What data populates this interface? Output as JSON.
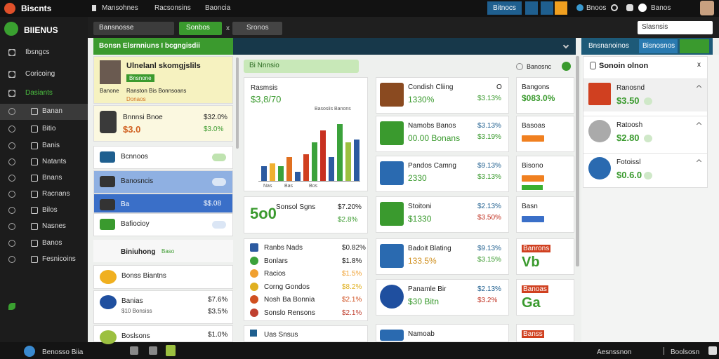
{
  "topbar": {
    "brand": "Biscnts",
    "nav": [
      "Mansohnes",
      "Racsonsins",
      "Baoncia"
    ],
    "button": "Bitnocs",
    "right": [
      "Bnoos",
      "Banos"
    ]
  },
  "sidebar": {
    "brand": "BIIENUS",
    "items": [
      "Ibsngcs",
      "Coricoing",
      "Dasiants",
      "Banan",
      "Bitio",
      "Banis",
      "Natants",
      "Bnans",
      "Racnans",
      "Bilos",
      "Nasnes",
      "Banos",
      "Fesnicoins"
    ],
    "footer": "Benosso Biia"
  },
  "toolbar": {
    "select": "Bansnosse",
    "button": "Sonbos",
    "close": "x",
    "field": "Sronos",
    "search": "Slasnsis"
  },
  "panel": {
    "title": "Bonsn Elsrnniuns I bcgngisdii",
    "right_title": "Bnsnanoinos",
    "right_tab": "Bisnosnos"
  },
  "profile": {
    "name": "Ulnelanl skomgjslils",
    "tag": "Bnsnone",
    "role": "Banone",
    "detail": "Ranston Bis Bonnsoans",
    "note": "Donaos"
  },
  "stat": {
    "label": "Bnnnsi Bnoe",
    "big": "$3.0",
    "value": "$32.0%",
    "value2": "$3.0%"
  },
  "left_list": [
    {
      "label": "Bcnnoos"
    },
    {
      "label": "Banosncis"
    },
    {
      "label": "Ba",
      "value": "$$.08"
    },
    {
      "label": "Bafiocioy"
    }
  ],
  "section": {
    "label": "Biniuhong",
    "tag": "Baso"
  },
  "left_cards": [
    {
      "label": "Bonss Biantns"
    },
    {
      "label": "Banias",
      "sub": "$10 Bonsiss",
      "v1": "$7.6%",
      "v2": "$3.5%"
    },
    {
      "label": "Boslsons",
      "v1": "$1.0%"
    }
  ],
  "filter": "Bi Nnnsio",
  "status": "Banosnc",
  "chart_card": {
    "title": "Rasmsis",
    "value": "$3,8/70",
    "caption": "Basosiis Banons",
    "labels": [
      "Nas",
      "Bas",
      "Bos"
    ],
    "bars": {
      "values": [
        25,
        30,
        25,
        40,
        15,
        45,
        65,
        85,
        40,
        95,
        65,
        70
      ],
      "colors": [
        "#2c5aa0",
        "#f0b030",
        "#3ba23b",
        "#e07020",
        "#2c5aa0",
        "#d04020",
        "#3ba23b",
        "#c83020",
        "#2c5aa0",
        "#3ba23b",
        "#9cc040",
        "#2c5aa0"
      ]
    }
  },
  "score_card": {
    "big": "5o0",
    "label": "Sonsol Sgns",
    "v1": "$7.20%",
    "v2": "$2.8%"
  },
  "legend": [
    {
      "label": "Ranbs Nads",
      "value": "$0.82%",
      "color": "#2c5aa0"
    },
    {
      "label": "Bonlars",
      "value": "$1.8%",
      "color": "#3ba23b"
    },
    {
      "label": "Racios",
      "value": "$1.5%",
      "color": "#f0a030"
    },
    {
      "label": "Corng Gondos",
      "value": "$8.2%",
      "color": "#e0b020"
    },
    {
      "label": "Nosh Ba Bonnia",
      "value": "$2.1%",
      "color": "#d05020"
    },
    {
      "label": "Sonslo Rensons",
      "value": "$2.1%",
      "color": "#c04030"
    }
  ],
  "bottom_card": "Uas Snsus",
  "tiles": [
    {
      "title": "Condish Cliing",
      "value": "1330%",
      "v1": "$3.13%",
      "o": "O"
    },
    {
      "title": "Namobs Banos",
      "value": "00.00 Bonans",
      "v1": "$3.13%",
      "v2": "$3.19%"
    },
    {
      "title": "Pandos Camng",
      "value": "2330",
      "v1": "$9.13%",
      "v2": "$3.13%"
    },
    {
      "title": "Stoitoni",
      "value": "$1330",
      "v1": "$2.13%",
      "v2": "$3.50%"
    },
    {
      "title": "Badoit Blating",
      "value": "133.5%",
      "v1": "$9.13%",
      "v2": "$3.15%"
    },
    {
      "title": "Panamle Bir",
      "value": "$30 Bitn",
      "v1": "$2.13%",
      "v2": "$3.2%"
    },
    {
      "title": "Namoab"
    }
  ],
  "side_tiles": [
    {
      "title": "Bangons",
      "value": "$083.0%"
    },
    {
      "title": "Basoas"
    },
    {
      "title": "Bisono"
    },
    {
      "title": "Basn"
    },
    {
      "title": "Banrons",
      "value": "Vb"
    },
    {
      "title": "Banoas",
      "value": "Ga"
    },
    {
      "title": "Banss"
    }
  ],
  "right_panel": {
    "title": "Sonoin olnon",
    "close": "x",
    "items": [
      {
        "label": "Ranosnd",
        "value": "$3.50"
      },
      {
        "label": "Ratoosh",
        "value": "$2.80"
      },
      {
        "label": "Fotoissl",
        "value": "$0.6.0"
      }
    ]
  },
  "bottombar": {
    "left": "Aesnssnon",
    "right": "Boolsosn"
  }
}
